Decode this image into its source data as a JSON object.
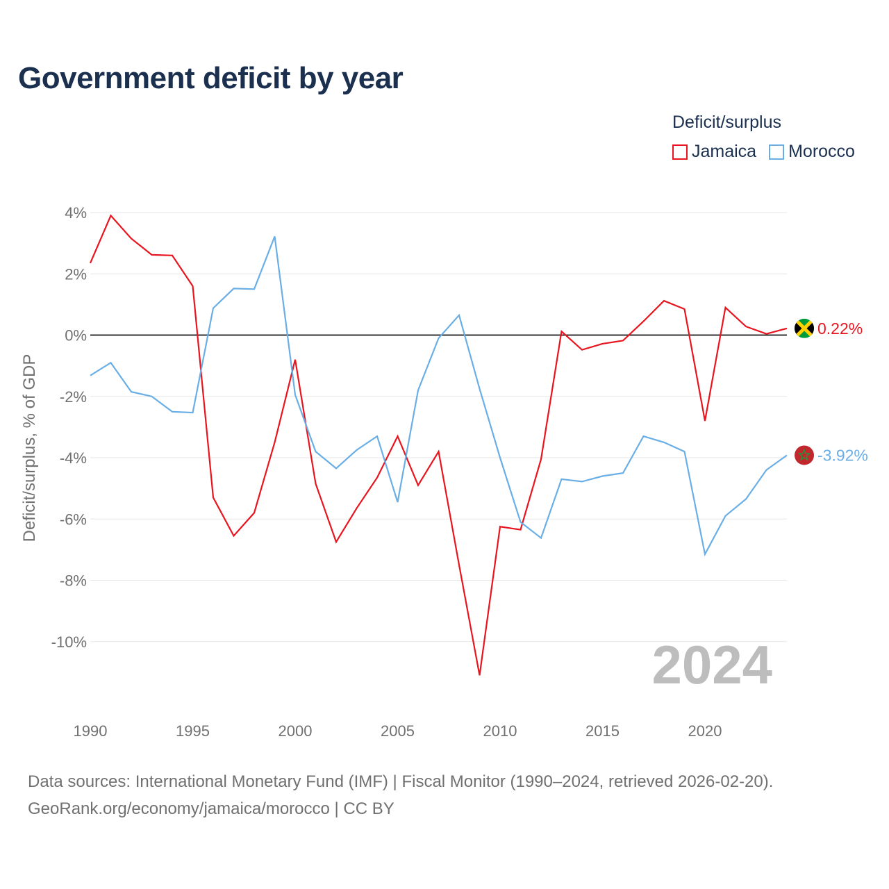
{
  "title": "Government deficit by year",
  "legend": {
    "title": "Deficit/surplus",
    "items": [
      {
        "label": "Jamaica",
        "color": "#e8141e"
      },
      {
        "label": "Morocco",
        "color": "#6aaee6"
      }
    ]
  },
  "footer": {
    "line1": "Data sources: International Monetary Fund (IMF) | Fiscal Monitor (1990–2024, retrieved 2026-02-20).",
    "line2": "GeoRank.org/economy/jamaica/morocco | CC BY"
  },
  "chart_data": {
    "type": "line",
    "title": "Government deficit by year",
    "xlabel": "",
    "ylabel": "Deficit/surplus, % of GDP",
    "xlim": [
      1990,
      2024
    ],
    "ylim": [
      -12,
      4.5
    ],
    "x_ticks": [
      1990,
      1995,
      2000,
      2005,
      2010,
      2015,
      2020
    ],
    "x_tick_labels": [
      "1990",
      "1995",
      "2000",
      "2005",
      "2010",
      "2015",
      "2020"
    ],
    "y_ticks": [
      4,
      2,
      0,
      -2,
      -4,
      -6,
      -8,
      -10
    ],
    "y_tick_labels": [
      "4%",
      "2%",
      "0%",
      "-2%",
      "-4%",
      "-6%",
      "-8%",
      "-10%"
    ],
    "grid": true,
    "zero_line": true,
    "watermark_year": "2024",
    "x": [
      1990,
      1991,
      1992,
      1993,
      1994,
      1995,
      1996,
      1997,
      1998,
      1999,
      2000,
      2001,
      2002,
      2003,
      2004,
      2005,
      2006,
      2007,
      2008,
      2009,
      2010,
      2011,
      2012,
      2013,
      2014,
      2015,
      2016,
      2017,
      2018,
      2019,
      2020,
      2021,
      2022,
      2023,
      2024
    ],
    "series": [
      {
        "name": "Jamaica",
        "color": "#e8141e",
        "end_label": "0.22%",
        "values": [
          2.35,
          3.9,
          3.15,
          2.62,
          2.6,
          1.6,
          -5.3,
          -6.55,
          -5.8,
          -3.5,
          -0.8,
          -4.85,
          -6.75,
          -5.65,
          -4.65,
          -3.3,
          -4.9,
          -3.8,
          -7.5,
          -11.1,
          -6.25,
          -6.35,
          -4.05,
          0.12,
          -0.48,
          -0.28,
          -0.18,
          0.45,
          1.12,
          0.85,
          -2.8,
          0.9,
          0.28,
          0.04,
          0.22
        ]
      },
      {
        "name": "Morocco",
        "color": "#6aaee6",
        "end_label": "-3.92%",
        "values": [
          -1.32,
          -0.9,
          -1.85,
          -2.0,
          -2.5,
          -2.53,
          0.88,
          1.52,
          1.5,
          3.22,
          -1.95,
          -3.8,
          -4.35,
          -3.75,
          -3.3,
          -5.45,
          -1.8,
          -0.1,
          0.65,
          -1.75,
          -4.0,
          -6.1,
          -6.62,
          -4.7,
          -4.78,
          -4.6,
          -4.5,
          -3.3,
          -3.5,
          -3.8,
          -7.15,
          -5.9,
          -5.35,
          -4.4,
          -3.92
        ]
      }
    ]
  }
}
